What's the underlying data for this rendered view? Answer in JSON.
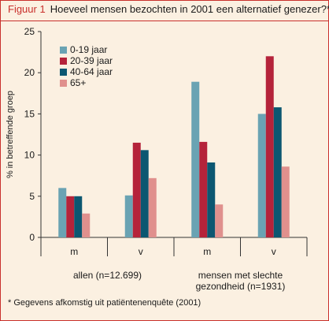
{
  "figure": {
    "label": "Figuur 1",
    "title": "Hoeveel mensen bezochten in 2001 een alternatief genezer?*",
    "footnote": "* Gegevens afkomstig uit patiëntenenquête (2001)"
  },
  "colors": {
    "frame": "#c9302c",
    "background": "#fbf0e1"
  },
  "chart_data": {
    "type": "bar",
    "ylabel": "% in betreffende groep",
    "xlabel": "",
    "ylim": [
      0,
      25
    ],
    "yticks": [
      0,
      5,
      10,
      15,
      20,
      25
    ],
    "grid": false,
    "legend_position": "top-left",
    "categories": [
      "m",
      "v",
      "m",
      "v"
    ],
    "groups": [
      {
        "label": "allen (n=12.699)",
        "categories": [
          "m",
          "v"
        ]
      },
      {
        "label": "mensen met slechte gezondheid (n=1931)",
        "label_lines": [
          "mensen met slechte",
          "gezondheid (n=1931)"
        ],
        "categories": [
          "m",
          "v"
        ]
      }
    ],
    "series": [
      {
        "name": "0-19 jaar",
        "color": "#6aa3b3",
        "values": [
          6.0,
          5.1,
          18.9,
          15.0
        ]
      },
      {
        "name": "20-39 jaar",
        "color": "#b5233a",
        "values": [
          5.0,
          11.5,
          11.6,
          22.0
        ]
      },
      {
        "name": "40-64 jaar",
        "color": "#0c5771",
        "values": [
          5.0,
          10.6,
          9.1,
          15.8
        ]
      },
      {
        "name": "65+",
        "color": "#e0908d",
        "values": [
          2.9,
          7.2,
          4.0,
          8.6
        ]
      }
    ]
  }
}
